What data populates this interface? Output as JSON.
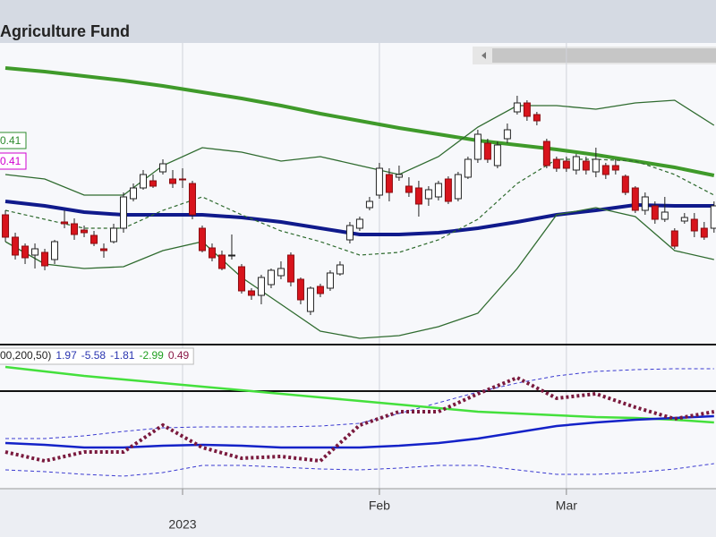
{
  "chart_data": [
    {
      "type": "candlestick",
      "title": "Agriculture Fund",
      "x": [
        0,
        1,
        2,
        3,
        4,
        5,
        6,
        7,
        8,
        9,
        10,
        11,
        12,
        13,
        14,
        15,
        16,
        17,
        18,
        19,
        20,
        21,
        22,
        23,
        24,
        25,
        26,
        27,
        28,
        29,
        30,
        31,
        32,
        33,
        34,
        35,
        36,
        37,
        38,
        39,
        40,
        41,
        42,
        43,
        44,
        45,
        46,
        47,
        48,
        49,
        50,
        51,
        52,
        53,
        54,
        55,
        56,
        57,
        58,
        59,
        60,
        61,
        62,
        63,
        64,
        65,
        66,
        67,
        68,
        69,
        70,
        71,
        72
      ],
      "open": [
        260,
        235,
        225,
        215,
        218,
        210,
        252,
        250,
        243,
        237,
        222,
        230,
        245,
        278,
        290,
        298,
        308,
        300,
        300,
        295,
        245,
        223,
        215,
        214,
        202,
        175,
        170,
        182,
        192,
        215,
        188,
        152,
        180,
        178,
        194,
        232,
        245,
        268,
        282,
        305,
        302,
        292,
        290,
        278,
        280,
        300,
        278,
        302,
        322,
        340,
        315,
        345,
        375,
        385,
        372,
        342,
        322,
        320,
        310,
        320,
        308,
        315,
        315,
        303,
        290,
        265,
        270,
        255,
        242,
        253,
        255,
        245,
        245
      ],
      "high": [
        265,
        240,
        228,
        228,
        222,
        232,
        265,
        256,
        248,
        242,
        228,
        250,
        285,
        295,
        310,
        305,
        322,
        310,
        312,
        298,
        248,
        228,
        220,
        238,
        205,
        178,
        193,
        200,
        208,
        218,
        190,
        180,
        183,
        198,
        208,
        252,
        258,
        280,
        318,
        312,
        315,
        302,
        298,
        292,
        298,
        303,
        308,
        325,
        355,
        345,
        342,
        362,
        393,
        388,
        375,
        345,
        325,
        325,
        328,
        325,
        335,
        318,
        322,
        305,
        292,
        285,
        275,
        280,
        245,
        262,
        262,
        252,
        275
      ],
      "low": [
        230,
        210,
        205,
        200,
        198,
        205,
        245,
        232,
        235,
        225,
        212,
        228,
        240,
        275,
        288,
        290,
        305,
        290,
        290,
        255,
        218,
        208,
        198,
        210,
        172,
        165,
        160,
        178,
        188,
        180,
        160,
        148,
        168,
        175,
        192,
        228,
        242,
        265,
        278,
        275,
        298,
        280,
        258,
        270,
        276,
        272,
        275,
        300,
        318,
        318,
        312,
        340,
        372,
        365,
        360,
        312,
        308,
        308,
        305,
        305,
        302,
        300,
        305,
        282,
        262,
        260,
        250,
        252,
        222,
        250,
        235,
        232,
        240
      ],
      "close": [
        235,
        215,
        212,
        222,
        203,
        230,
        250,
        238,
        240,
        228,
        220,
        245,
        280,
        290,
        305,
        292,
        317,
        295,
        299,
        260,
        220,
        212,
        200,
        215,
        175,
        170,
        190,
        198,
        200,
        185,
        165,
        178,
        172,
        195,
        204,
        248,
        255,
        275,
        312,
        285,
        305,
        285,
        272,
        288,
        295,
        275,
        305,
        322,
        350,
        322,
        338,
        355,
        385,
        370,
        365,
        315,
        312,
        312,
        325,
        310,
        322,
        305,
        310,
        285,
        265,
        280,
        255,
        263,
        225,
        257,
        242,
        235,
        270
      ],
      "up_color": "#ffffff",
      "down_color": "#d8141c",
      "xlim": [
        -0.55,
        72.2
      ],
      "ylim": [
        115,
        452
      ],
      "xticks": [
        {
          "value": 38,
          "label": "Feb"
        },
        {
          "value": 57,
          "label": "Mar"
        }
      ],
      "year_ticks": [
        {
          "value": 18,
          "label": "2023"
        }
      ],
      "tags": [
        {
          "value": 0.41,
          "color": "#2e8b2e"
        },
        {
          "value": 0.41,
          "color": "#d000d0"
        }
      ],
      "line_x": [
        0,
        4,
        8,
        12,
        16,
        20,
        24,
        28,
        32,
        36,
        40,
        44,
        48,
        52,
        56,
        60,
        64,
        68,
        72
      ],
      "lines": [
        {
          "color": "#3f9a2a",
          "width": 4,
          "dash": false,
          "values": [
            424,
            420,
            415,
            410,
            404,
            397,
            390,
            382,
            373,
            365,
            357,
            350,
            343,
            338,
            333,
            327,
            320,
            313,
            304
          ]
        },
        {
          "color": "#101a8c",
          "width": 4,
          "dash": false,
          "values": [
            275,
            270,
            263,
            260,
            260,
            260,
            257,
            252,
            245,
            238,
            238,
            240,
            245,
            252,
            260,
            265,
            271,
            270,
            270
          ]
        },
        {
          "color": "#2f6b2f",
          "width": 1.3,
          "dash": false,
          "values": [
            305,
            300,
            282,
            282,
            315,
            335,
            330,
            320,
            325,
            315,
            305,
            325,
            358,
            382,
            382,
            378,
            385,
            388,
            360
          ]
        },
        {
          "color": "#2f6b2f",
          "width": 1.3,
          "dash": false,
          "values": [
            230,
            205,
            200,
            202,
            220,
            230,
            190,
            160,
            130,
            122,
            125,
            135,
            150,
            200,
            260,
            268,
            258,
            220,
            210
          ]
        },
        {
          "color": "#2f6b2f",
          "width": 1.2,
          "dash": true,
          "values": [
            265,
            255,
            245,
            245,
            265,
            280,
            260,
            242,
            230,
            215,
            218,
            232,
            255,
            295,
            322,
            322,
            320,
            305,
            282
          ]
        }
      ]
    },
    {
      "type": "line",
      "label": "00,200,50)",
      "label_values": [
        {
          "value": 1.97,
          "color": "#2a35b0"
        },
        {
          "value": -5.58,
          "color": "#2a35b0"
        },
        {
          "value": -1.81,
          "color": "#2a35b0"
        },
        {
          "value": -2.99,
          "color": "#22a022"
        },
        {
          "value": 0.49,
          "color": "#8b1a48"
        }
      ],
      "x": [
        0,
        4,
        8,
        12,
        16,
        20,
        24,
        28,
        32,
        36,
        40,
        44,
        48,
        52,
        56,
        60,
        64,
        68,
        72
      ],
      "xlim": [
        -0.55,
        72.2
      ],
      "ylim": [
        0,
        158
      ],
      "hline": 108,
      "series": [
        {
          "color": "#3a3ad0",
          "width": 1,
          "dash": "4 3",
          "values": [
            55,
            55,
            58,
            63,
            67,
            68,
            68,
            68,
            69,
            72,
            83,
            95,
            107,
            117,
            125,
            130,
            132,
            133,
            133
          ]
        },
        {
          "color": "#3a3ad0",
          "width": 1,
          "dash": "4 3",
          "values": [
            20,
            18,
            15,
            13,
            17,
            25,
            25,
            23,
            21,
            20,
            22,
            25,
            25,
            20,
            15,
            15,
            17,
            21,
            27
          ]
        },
        {
          "color": "#44e03c",
          "width": 2.5,
          "dash": "",
          "values": [
            135,
            130,
            125,
            121,
            117,
            113,
            109,
            105,
            101,
            97,
            93,
            89,
            85,
            83,
            81,
            79,
            78,
            76,
            73
          ]
        },
        {
          "color": "#1422c8",
          "width": 2.5,
          "dash": "",
          "values": [
            50,
            48,
            45,
            45,
            47,
            48,
            47,
            45,
            45,
            45,
            47,
            50,
            55,
            62,
            69,
            73,
            76,
            78,
            80
          ]
        },
        {
          "color": "#7a1a3e",
          "width": 4,
          "dash": "3 3",
          "values": [
            40,
            30,
            40,
            40,
            70,
            45,
            33,
            35,
            30,
            70,
            85,
            85,
            105,
            123,
            100,
            105,
            90,
            77,
            85
          ]
        }
      ]
    }
  ]
}
